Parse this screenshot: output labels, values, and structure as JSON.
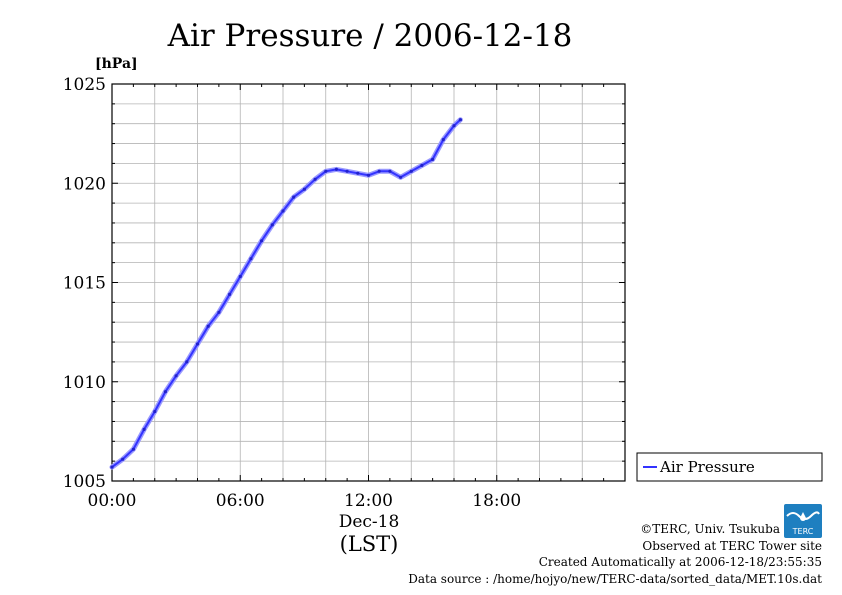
{
  "chart_data": {
    "type": "line",
    "title": "Air Pressure / 2006-12-18",
    "ylabel": "[hPa]",
    "xlabel": "(LST)",
    "x_date_label": "Dec-18",
    "ylim": [
      1005,
      1025
    ],
    "xlim_hours": [
      0,
      24
    ],
    "y_ticks": [
      "1005",
      "1010",
      "1015",
      "1020",
      "1025"
    ],
    "x_ticks": [
      "00:00",
      "06:00",
      "12:00",
      "18:00"
    ],
    "grid": true,
    "legend_position": "right",
    "series": [
      {
        "name": "Air Pressure",
        "color": "#3333ff",
        "x_hours": [
          0.0,
          0.5,
          1.0,
          1.5,
          2.0,
          2.5,
          3.0,
          3.5,
          4.0,
          4.5,
          5.0,
          5.5,
          6.0,
          6.5,
          7.0,
          7.5,
          8.0,
          8.5,
          9.0,
          9.5,
          10.0,
          10.5,
          11.0,
          11.5,
          12.0,
          12.5,
          13.0,
          13.5,
          14.0,
          14.5,
          15.0,
          15.5,
          16.0,
          16.3
        ],
        "values": [
          1005.7,
          1006.1,
          1006.6,
          1007.6,
          1008.5,
          1009.5,
          1010.3,
          1011.0,
          1011.9,
          1012.8,
          1013.5,
          1014.4,
          1015.3,
          1016.2,
          1017.1,
          1017.9,
          1018.6,
          1019.3,
          1019.7,
          1020.2,
          1020.6,
          1020.7,
          1020.6,
          1020.5,
          1020.4,
          1020.6,
          1020.6,
          1020.3,
          1020.6,
          1020.9,
          1021.2,
          1022.2,
          1022.9,
          1023.2
        ]
      }
    ]
  },
  "footer": {
    "copyright": "©TERC, Univ. Tsukuba",
    "observed": "Observed at TERC Tower site",
    "created": "Created Automatically at 2006-12-18/23:55:35",
    "source": "Data source : /home/hojyo/new/TERC-data/sorted_data/MET.10s.dat",
    "logo_text": "TERC"
  }
}
